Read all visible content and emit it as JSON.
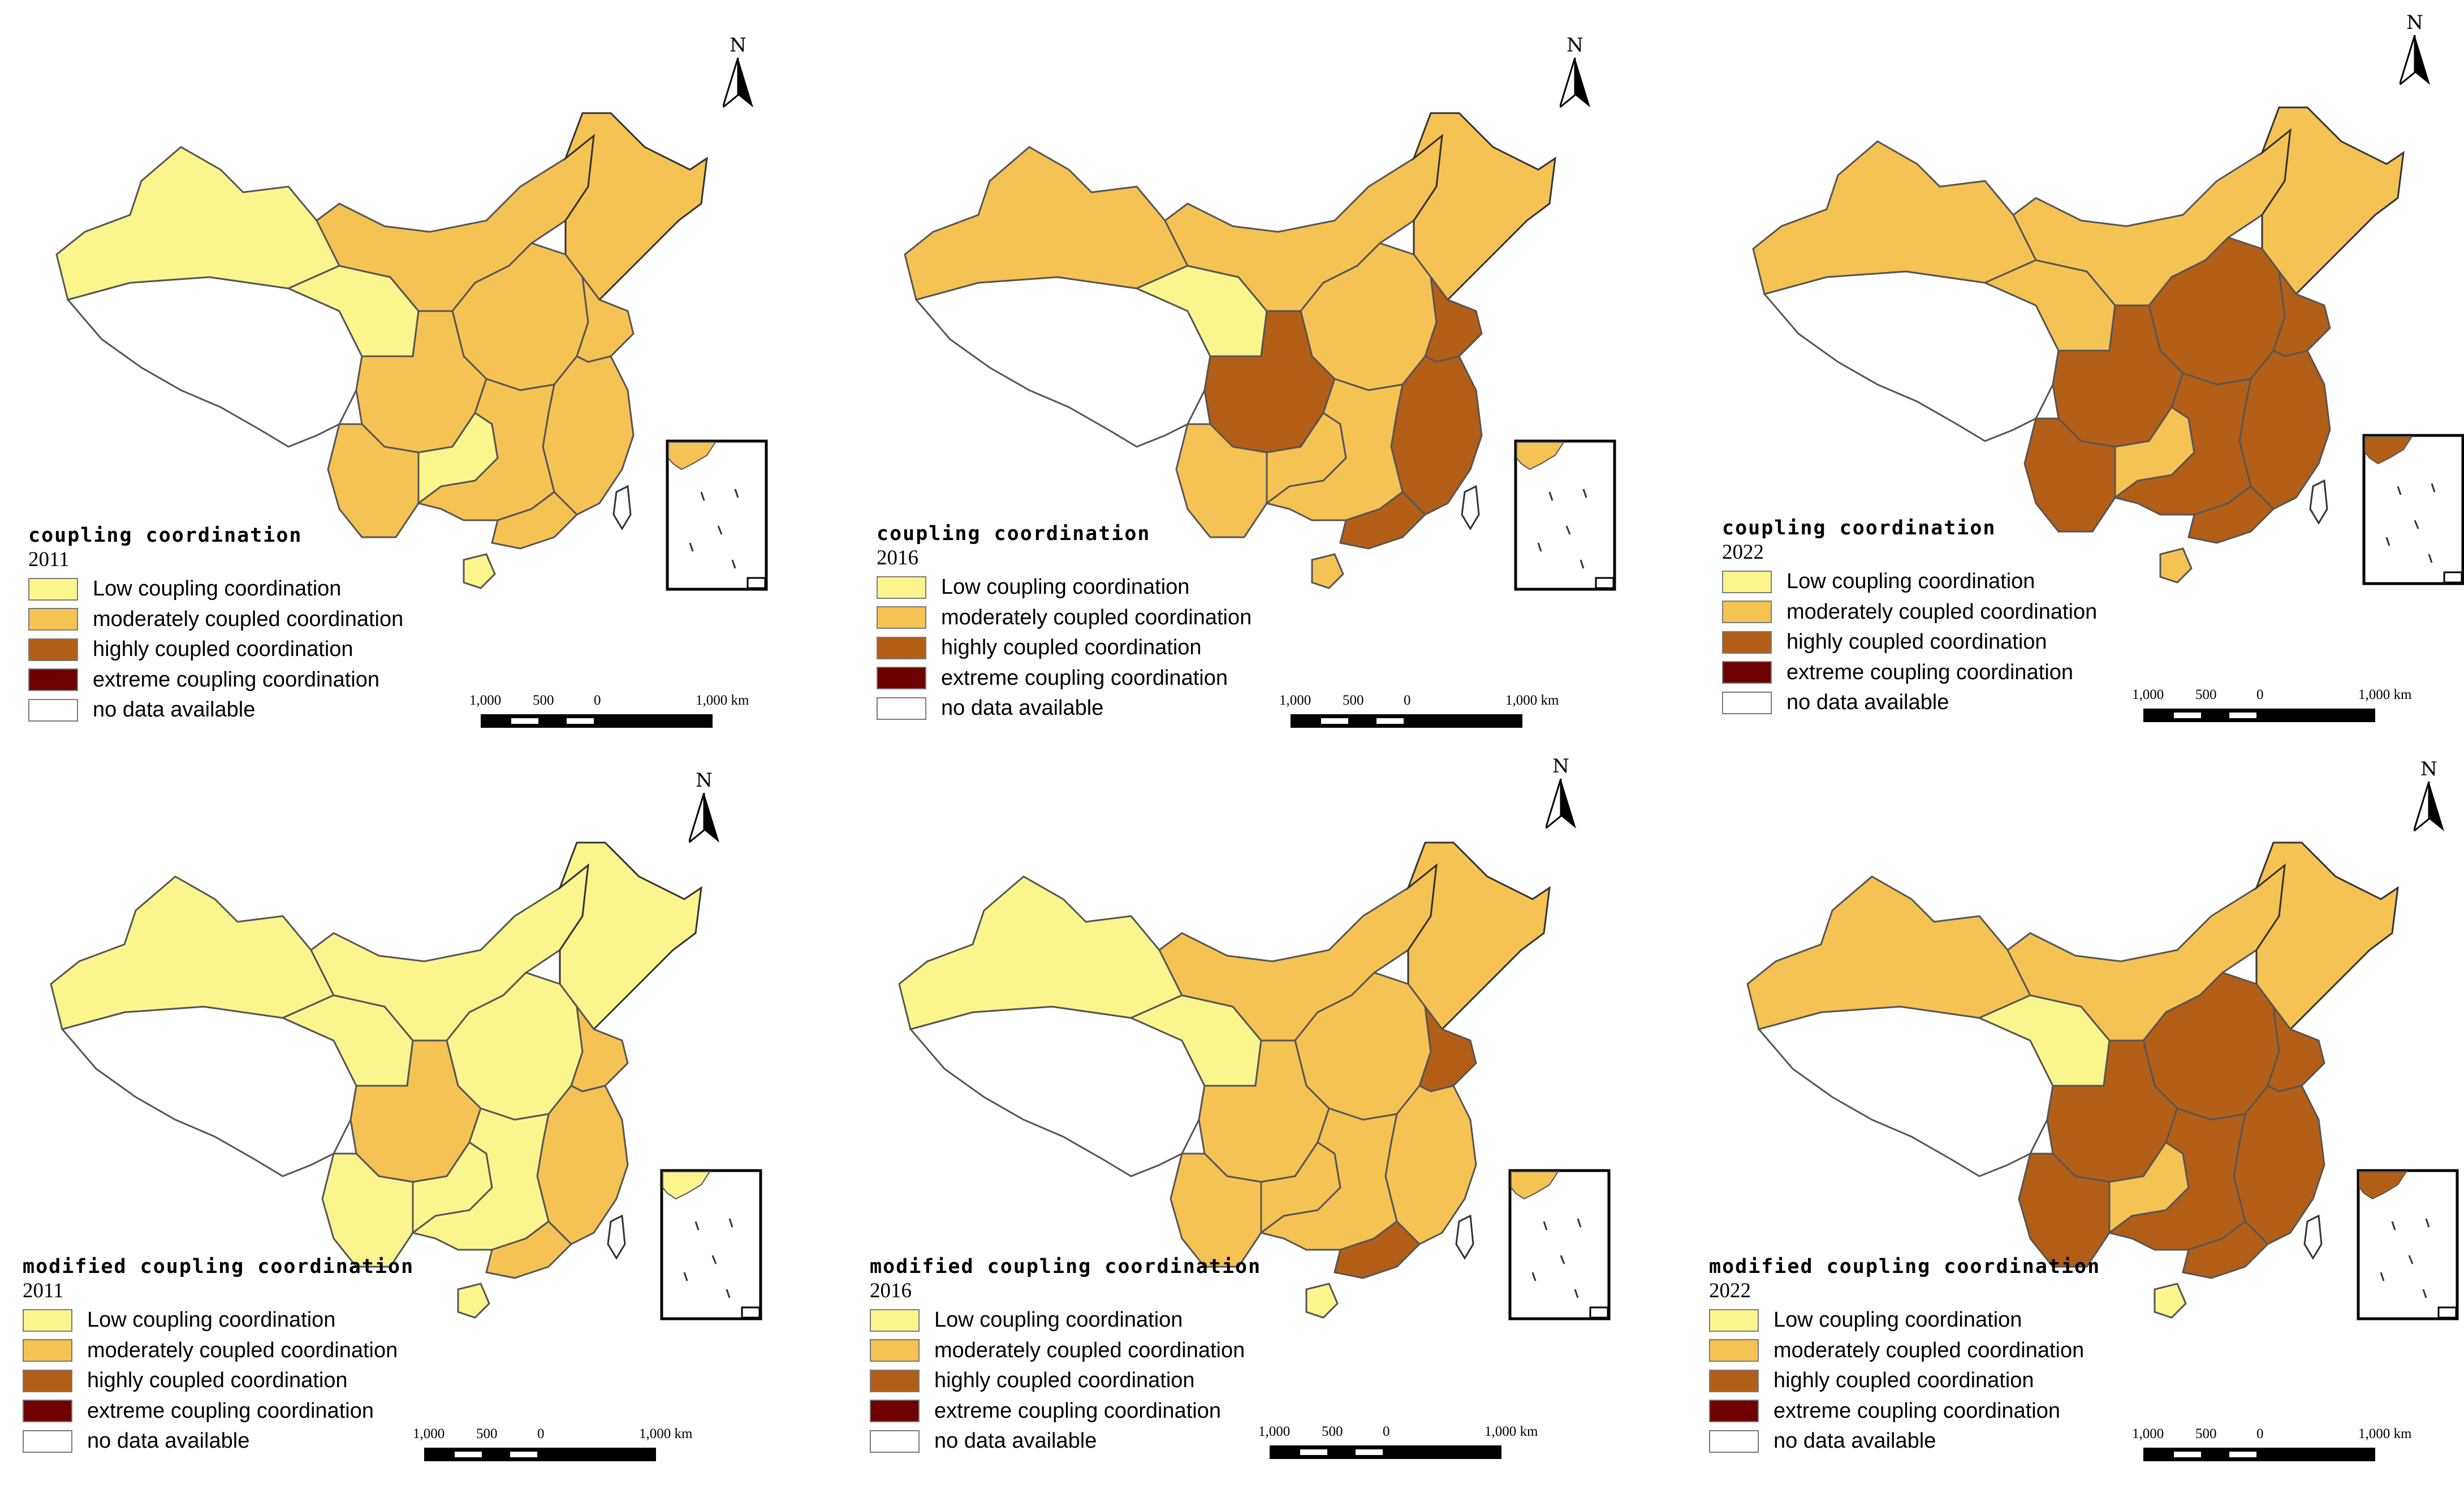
{
  "colors": {
    "low": "#fbf58e",
    "moderate": "#f5c254",
    "high": "#b35e17",
    "extreme": "#6e0000",
    "none": "#ffffff"
  },
  "north_label": "N",
  "legend_items": {
    "low": "Low coupling coordination",
    "moderate": "moderately coupled coordination",
    "high": "highly coupled coordination",
    "extreme": "extreme coupling coordination",
    "none": "no data available"
  },
  "scale": {
    "left": "1,000",
    "mid1": "500",
    "zero": "0",
    "right": "1,000 km"
  },
  "maps": [
    {
      "title": "coupling coordination",
      "year": "2011",
      "northwest": "low",
      "tibet": "none",
      "qinghai": "low",
      "northeast": "moderate",
      "north": "moderate",
      "east": "moderate",
      "shandong": "moderate",
      "sichuan": "moderate",
      "guizhou": "low",
      "south": "moderate",
      "guangdong": "moderate",
      "central": "moderate",
      "yunnan": "moderate",
      "hainan": "low",
      "inset": "moderate"
    },
    {
      "title": "coupling coordination",
      "year": "2016",
      "northwest": "moderate",
      "tibet": "none",
      "qinghai": "low",
      "northeast": "moderate",
      "north": "moderate",
      "east": "high",
      "shandong": "high",
      "sichuan": "high",
      "guizhou": "moderate",
      "south": "moderate",
      "guangdong": "high",
      "central": "moderate",
      "yunnan": "moderate",
      "hainan": "moderate",
      "inset": "moderate"
    },
    {
      "title": "coupling coordination",
      "year": "2022",
      "northwest": "moderate",
      "tibet": "none",
      "qinghai": "moderate",
      "northeast": "moderate",
      "north": "moderate",
      "east": "high",
      "shandong": "high",
      "sichuan": "high",
      "guizhou": "moderate",
      "south": "high",
      "guangdong": "high",
      "central": "high",
      "yunnan": "high",
      "hainan": "moderate",
      "inset": "high"
    },
    {
      "title": "modified coupling coordination",
      "year": "2011",
      "northwest": "low",
      "tibet": "none",
      "qinghai": "low",
      "northeast": "low",
      "north": "low",
      "east": "moderate",
      "shandong": "moderate",
      "sichuan": "moderate",
      "guizhou": "low",
      "south": "low",
      "guangdong": "moderate",
      "central": "low",
      "yunnan": "low",
      "hainan": "low",
      "inset": "low"
    },
    {
      "title": "modified coupling coordination",
      "year": "2016",
      "northwest": "low",
      "tibet": "none",
      "qinghai": "low",
      "northeast": "moderate",
      "north": "moderate",
      "east": "moderate",
      "shandong": "high",
      "sichuan": "moderate",
      "guizhou": "moderate",
      "south": "moderate",
      "guangdong": "high",
      "central": "moderate",
      "yunnan": "moderate",
      "hainan": "low",
      "inset": "moderate"
    },
    {
      "title": "modified coupling coordination",
      "year": "2022",
      "northwest": "moderate",
      "tibet": "none",
      "qinghai": "low",
      "northeast": "moderate",
      "north": "moderate",
      "east": "high",
      "shandong": "high",
      "sichuan": "high",
      "guizhou": "moderate",
      "south": "high",
      "guangdong": "high",
      "central": "high",
      "yunnan": "high",
      "hainan": "low",
      "inset": "high"
    }
  ]
}
